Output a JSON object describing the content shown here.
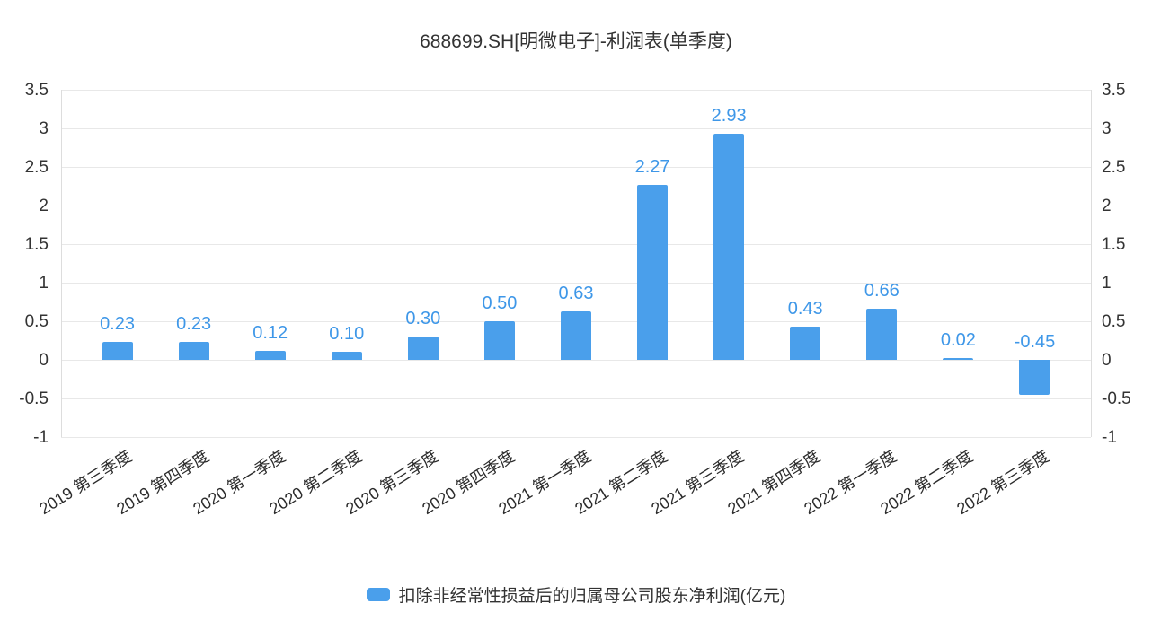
{
  "page": {
    "title": "688699.SH[明微电子]-利润表(单季度)"
  },
  "legend": {
    "label": "扣除非经常性损益后的归属母公司股东净利润(亿元)"
  },
  "colors": {
    "bar": "#4A9FEB",
    "value_label": "#3E97E8",
    "axis_text": "#333333",
    "grid": "#E8E8E8"
  },
  "chart_data": {
    "type": "bar",
    "title": "688699.SH[明微电子]-利润表(单季度)",
    "series_name": "扣除非经常性损益后的归属母公司股东净利润(亿元)",
    "categories": [
      "2019 第三季度",
      "2019 第四季度",
      "2020 第一季度",
      "2020 第二季度",
      "2020 第三季度",
      "2020 第四季度",
      "2021 第一季度",
      "2021 第二季度",
      "2021 第三季度",
      "2021 第四季度",
      "2022 第一季度",
      "2022 第二季度",
      "2022 第三季度"
    ],
    "values": [
      0.23,
      0.23,
      0.12,
      0.1,
      0.3,
      0.5,
      0.63,
      2.27,
      2.93,
      0.43,
      0.66,
      0.02,
      -0.45
    ],
    "value_labels": [
      "0.23",
      "0.23",
      "0.12",
      "0.10",
      "0.30",
      "0.50",
      "0.63",
      "2.27",
      "2.93",
      "0.43",
      "0.66",
      "0.02",
      "-0.45"
    ],
    "xlabel": "",
    "ylabel": "",
    "ylim": [
      -1,
      3.5
    ],
    "yticks": [
      -1,
      -0.5,
      0,
      0.5,
      1,
      1.5,
      2,
      2.5,
      3,
      3.5
    ],
    "ytick_labels": [
      "-1",
      "-0.5",
      "0",
      "0.5",
      "1",
      "1.5",
      "2",
      "2.5",
      "3",
      "3.5"
    ],
    "grid": true,
    "dual_y_axis_labels": true,
    "legend_position": "bottom",
    "bar_color": "#4A9FEB",
    "label_color": "#3E97E8"
  }
}
